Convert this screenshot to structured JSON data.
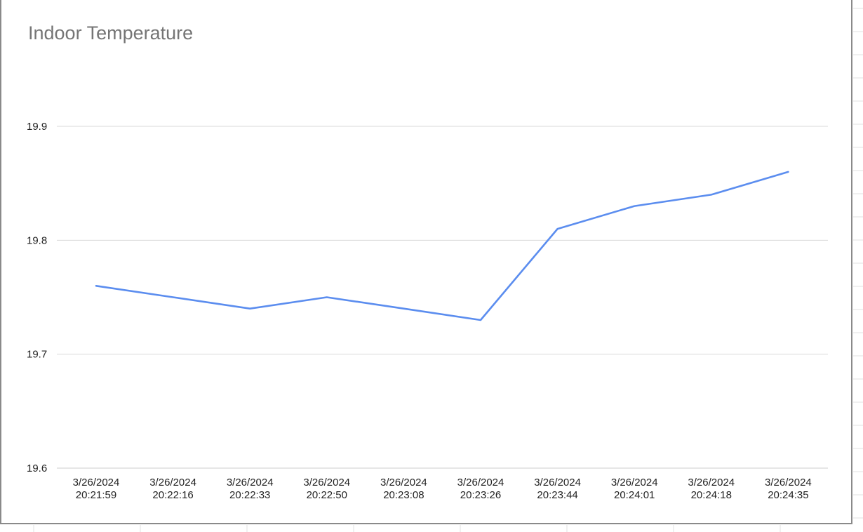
{
  "chart_data": {
    "type": "line",
    "title": "Indoor Temperature",
    "xlabel": "",
    "ylabel": "",
    "categories": [
      [
        "3/26/2024",
        "20:21:59"
      ],
      [
        "3/26/2024",
        "20:22:16"
      ],
      [
        "3/26/2024",
        "20:22:33"
      ],
      [
        "3/26/2024",
        "20:22:50"
      ],
      [
        "3/26/2024",
        "20:23:08"
      ],
      [
        "3/26/2024",
        "20:23:26"
      ],
      [
        "3/26/2024",
        "20:23:44"
      ],
      [
        "3/26/2024",
        "20:24:01"
      ],
      [
        "3/26/2024",
        "20:24:18"
      ],
      [
        "3/26/2024",
        "20:24:35"
      ]
    ],
    "series": [
      {
        "values": [
          19.76,
          19.75,
          19.74,
          19.75,
          19.74,
          19.73,
          19.81,
          19.83,
          19.84,
          19.86
        ],
        "color": "#5b8def"
      }
    ],
    "yticks": [
      "19.6",
      "19.7",
      "19.8",
      "19.9"
    ],
    "ylim": [
      19.6,
      19.9
    ],
    "grid": true,
    "legend": "none",
    "gridline_color": "#d9d9d9",
    "axis_color": "#cccccc"
  }
}
